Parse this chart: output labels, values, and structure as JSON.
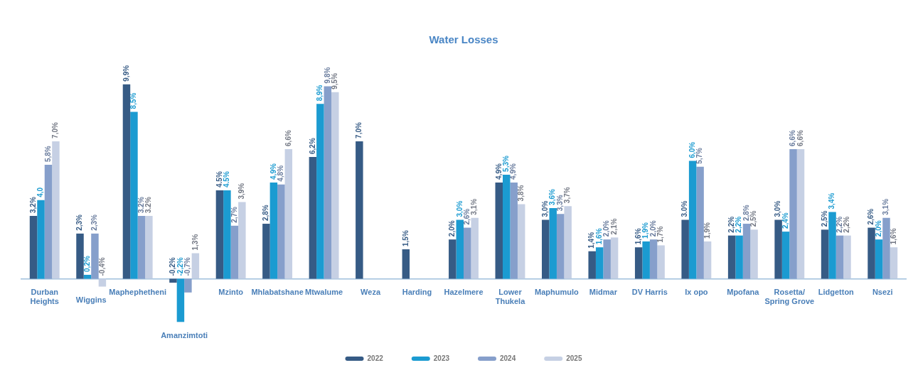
{
  "chart_data": {
    "type": "bar",
    "title": "Water Losses",
    "tick_labels": "x",
    "legend": "bottom",
    "data_labels": true,
    "categories": [
      "Durban Heights",
      "Wiggins",
      "Maphephetheni",
      "Amanzimtoti",
      "Mzinto",
      "Mhlabatshane",
      "Mtwalume",
      "Weza",
      "Harding",
      "Hazelmere",
      "Lower Thukela",
      "Maphumulo",
      "Midmar",
      "DV Harris",
      "Ix opo",
      "Mpofana",
      "Rosetta/ Spring Grove",
      "Lidgetton",
      "Nsezi"
    ],
    "series": [
      {
        "name": "2022",
        "color": "#365b85",
        "values": [
          3.2,
          2.3,
          9.9,
          -0.2,
          4.5,
          2.8,
          6.2,
          7.0,
          1.5,
          2.0,
          4.9,
          3.0,
          1.4,
          1.6,
          3.0,
          2.2,
          3.0,
          2.5,
          2.6
        ],
        "value_labels": [
          "3,2%",
          "2,3%",
          "9,9%",
          "-0,2%",
          "4.5%",
          "2,8%",
          "6,2%",
          "7,0%",
          "1,5%",
          "2,0%",
          "4,9%",
          "3,0%",
          "1,4%",
          "1,6%",
          "3.0%",
          "2,2%",
          "3,0%",
          "2,5%",
          "2,6%"
        ]
      },
      {
        "name": "2023",
        "color": "#1b9bd1",
        "values": [
          4.0,
          0.2,
          8.5,
          -2.2,
          4.5,
          4.9,
          8.9,
          null,
          null,
          3.0,
          5.3,
          3.6,
          1.6,
          1.9,
          6.0,
          2.2,
          2.4,
          3.4,
          2.0
        ],
        "value_labels": [
          "4,0",
          "0,2%",
          "8,5%",
          "-2,2%",
          "4.5%",
          "4,9%",
          "8,9%",
          null,
          null,
          "3,0%",
          "5,3%",
          "3,6%",
          "1,6%",
          "1,9%",
          "6,0%",
          "2,2%",
          "2,4%",
          "3,4%",
          "2,0%"
        ]
      },
      {
        "name": "2024",
        "color": "#869fcb",
        "values": [
          5.8,
          2.3,
          3.2,
          -0.7,
          2.7,
          4.8,
          9.8,
          null,
          null,
          2.6,
          4.9,
          3.3,
          2.0,
          2.0,
          5.7,
          2.8,
          6.6,
          2.2,
          3.1
        ],
        "value_labels": [
          "5,8%",
          "2,3%",
          "3.2%",
          "-0,7%",
          "2,7%",
          "4,8%",
          "9,8%",
          null,
          null,
          "2,6%",
          "4,9%",
          "3,3%",
          "2,0%",
          "2,0%",
          "5,7%",
          "2,8%",
          "6,6%",
          "2,2%",
          "3,1%"
        ]
      },
      {
        "name": "2025",
        "color": "#c6d0e4",
        "values": [
          7.0,
          -0.4,
          3.2,
          1.3,
          3.9,
          6.6,
          9.5,
          null,
          null,
          3.1,
          3.8,
          3.7,
          2.1,
          1.7,
          1.9,
          2.5,
          6.6,
          2.2,
          1.6
        ],
        "value_labels": [
          "7,0%",
          "-0,4%",
          "3.2%",
          "1,3%",
          "3,9%",
          "6,6%",
          "9,5%",
          null,
          null,
          "3,1%",
          "3,8%",
          "3,7%",
          "2,1%",
          "1,7%",
          "1,9%",
          "2,5%",
          "6,6%",
          "2,2%",
          "1,6%"
        ]
      }
    ]
  }
}
